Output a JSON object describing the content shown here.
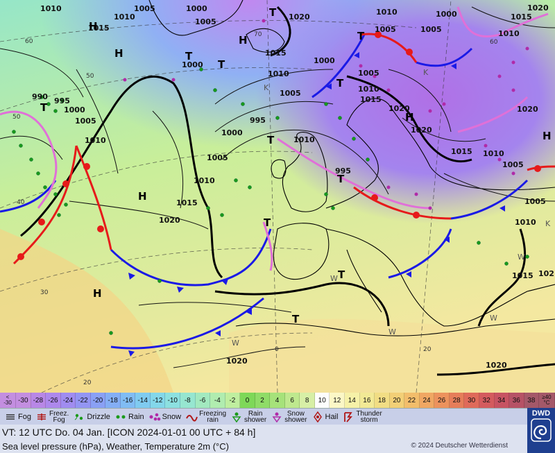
{
  "map": {
    "pressure_labels": [
      "1010",
      "1005",
      "1000",
      "1015",
      "1010",
      "1020",
      "1010",
      "1015",
      "1020",
      "1000",
      "1005",
      "1005",
      "1015",
      "1010",
      "1000",
      "1005",
      "1010",
      "1000",
      "1005",
      "1010",
      "1015",
      "1020",
      "1020",
      "1005",
      "990",
      "995",
      "1000",
      "1005",
      "1010",
      "995",
      "1000",
      "1005",
      "1010",
      "1015",
      "1020",
      "1020",
      "1015",
      "1010",
      "1005",
      "995",
      "1010",
      "1010",
      "1005",
      "1015",
      "102",
      "1020",
      "1020"
    ],
    "highs": [
      "H",
      "H",
      "H",
      "H",
      "H",
      "H",
      "H"
    ],
    "lows": [
      "T",
      "T",
      "T",
      "T",
      "T",
      "T",
      "T",
      "T",
      "T",
      "T",
      "T"
    ],
    "lat_labels": [
      "60",
      "50",
      "40",
      "30",
      "20",
      "60",
      "70",
      "50"
    ],
    "lon_labels": [
      "0",
      "20"
    ],
    "small_letters": [
      "K",
      "K",
      "K",
      "W",
      "W",
      "W",
      "W",
      "W"
    ]
  },
  "scale": {
    "low_edge": [
      "<",
      "-30"
    ],
    "values": [
      "-30",
      "-28",
      "-26",
      "-24",
      "-22",
      "-20",
      "-18",
      "-16",
      "-14",
      "-12",
      "-10",
      "-8",
      "-6",
      "-4",
      "-2",
      "0",
      "2",
      "4",
      "6",
      "8",
      "10",
      "12",
      "14",
      "16",
      "18",
      "20",
      "22",
      "24",
      "26",
      "28",
      "30",
      "32",
      "34",
      "36",
      "38"
    ],
    "high_edge": [
      "≥40",
      "°C"
    ],
    "colors": [
      "#c38ee0",
      "#b887e6",
      "#ad88ec",
      "#a08cf0",
      "#9395f3",
      "#8aa0f5",
      "#84aef5",
      "#80bcf4",
      "#7fcbf0",
      "#83d7ea",
      "#8ce0e0",
      "#96e6d0",
      "#a2e9bf",
      "#b0ecaf",
      "#bfee9f",
      "#7ed858",
      "#8fdc67",
      "#a6e27a",
      "#bee88e",
      "#d7efa6",
      "#fdfdfd",
      "#fbf7c6",
      "#f6f1a8",
      "#f2e995",
      "#f1dd84",
      "#f2cf76",
      "#f2bd6b",
      "#f0a763",
      "#ec925d",
      "#e67d5a",
      "#df6a5a",
      "#d45b5e",
      "#c75362",
      "#b65266",
      "#a45869"
    ]
  },
  "legend": {
    "fog": "Fog",
    "freez_fog": [
      "Freez.",
      "Fog"
    ],
    "drizzle": "Drizzle",
    "rain": "Rain",
    "snow": "Snow",
    "freezing_rain": [
      "Freezing",
      "rain"
    ],
    "rain_shower": [
      "Rain",
      "shower"
    ],
    "snow_shower": [
      "Snow",
      "shower"
    ],
    "hail": "Hail",
    "thunderstorm": [
      "Thunder",
      "storm"
    ]
  },
  "footer": {
    "valid_time": "VT: 12 UTC Do.  04 Jan. [ICON 2024-01-01  00 UTC + 84 h]",
    "description": "Sea level pressure (hPa), Weather, Temperature 2m (°C)",
    "copyright": "© 2024 Deutscher Wetterdienst",
    "logo": "DWD"
  },
  "colors": {
    "cold_front": "#1a1ae6",
    "warm_front": "#e61a1a",
    "occlusion": "#e070d8"
  }
}
